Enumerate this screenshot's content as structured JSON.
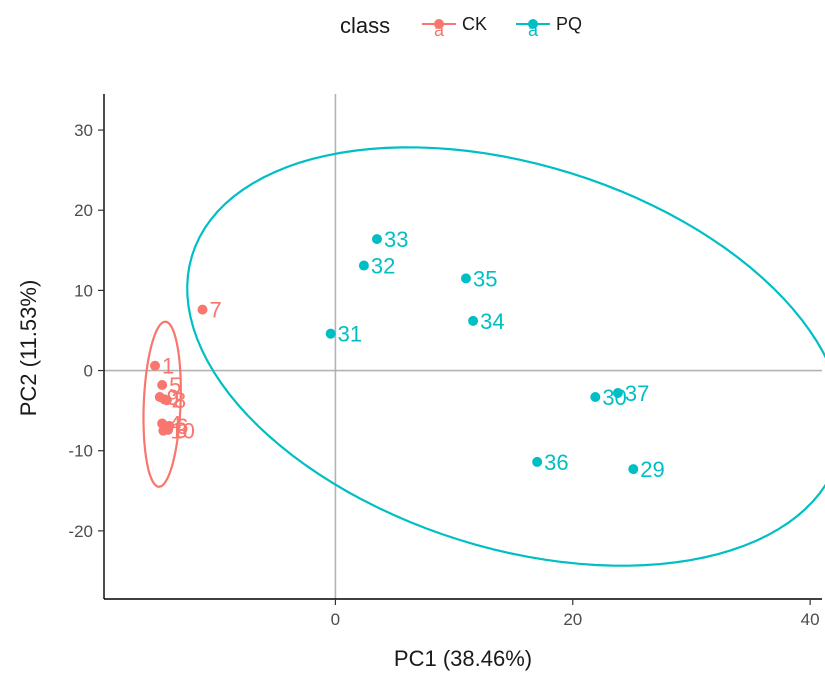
{
  "chart_data": {
    "type": "scatter",
    "xlabel": "PC1 (38.46%)",
    "ylabel": "PC2 (11.53%)",
    "xlim": [
      -19.5,
      41
    ],
    "ylim": [
      -28.5,
      34.5
    ],
    "x_ticks": [
      0,
      20,
      40
    ],
    "y_ticks": [
      -20,
      -10,
      0,
      10,
      20,
      30
    ],
    "reference_lines": {
      "x": 0,
      "y": 0
    },
    "grid": false,
    "legend": {
      "title": "class",
      "position": "top",
      "entries": [
        {
          "label": "CK",
          "key_glyph": "a",
          "color": "#F8766D"
        },
        {
          "label": "PQ",
          "key_glyph": "a",
          "color": "#00BFC4"
        }
      ]
    },
    "series": [
      {
        "name": "CK",
        "color": "#F8766D",
        "points": [
          {
            "label": "1",
            "x": -15.2,
            "y": 0.6
          },
          {
            "label": "2",
            "x": -14.4,
            "y": -3.6
          },
          {
            "label": "3",
            "x": -14.1,
            "y": -7.4
          },
          {
            "label": "4",
            "x": -14.6,
            "y": -6.6
          },
          {
            "label": "5",
            "x": -14.6,
            "y": -1.8
          },
          {
            "label": "6",
            "x": -14.0,
            "y": -6.9
          },
          {
            "label": "7",
            "x": -11.2,
            "y": 7.6
          },
          {
            "label": "8",
            "x": -14.2,
            "y": -3.7
          },
          {
            "label": "9",
            "x": -14.8,
            "y": -3.3
          },
          {
            "label": "10",
            "x": -14.5,
            "y": -7.5
          }
        ]
      },
      {
        "name": "PQ",
        "color": "#00BFC4",
        "points": [
          {
            "label": "29",
            "x": 25.1,
            "y": -12.3
          },
          {
            "label": "30",
            "x": 21.9,
            "y": -3.3
          },
          {
            "label": "31",
            "x": -0.4,
            "y": 4.6
          },
          {
            "label": "32",
            "x": 2.4,
            "y": 13.1
          },
          {
            "label": "33",
            "x": 3.5,
            "y": 16.4
          },
          {
            "label": "34",
            "x": 11.6,
            "y": 6.2
          },
          {
            "label": "35",
            "x": 11.0,
            "y": 11.5
          },
          {
            "label": "36",
            "x": 17.0,
            "y": -11.4
          },
          {
            "label": "37",
            "x": 23.8,
            "y": -2.8
          }
        ]
      }
    ],
    "ellipses": [
      {
        "series": "CK",
        "center": [
          -14.6,
          -4.2
        ],
        "semi_axes": [
          10.3,
          1.55
        ],
        "angle_deg": 88.5
      },
      {
        "series": "PQ",
        "center": [
          15.15,
          1.75
        ],
        "semi_axes": [
          31.0,
          22.0
        ],
        "angle_deg": -40.0
      }
    ]
  }
}
